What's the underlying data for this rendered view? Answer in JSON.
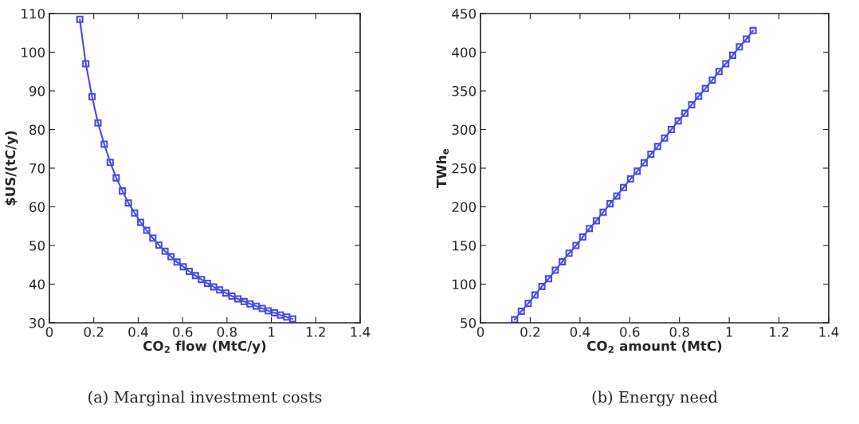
{
  "chart_data": [
    {
      "type": "line",
      "xlabel": "CO$_{2}$ flow (MtC/y)",
      "ylabel": "$US/(tC/y)",
      "xlim": [
        0,
        1.4
      ],
      "xticks": [
        0,
        0.2,
        0.4,
        0.6,
        0.8,
        1,
        1.2,
        1.4
      ],
      "ylim": [
        30,
        110
      ],
      "yticks": [
        30,
        40,
        50,
        60,
        70,
        80,
        90,
        100,
        110
      ],
      "grid": false,
      "marker": "square",
      "line_style": "solid",
      "annotations": [
        "(a) Marginal investment costs"
      ],
      "x": [
        0.137,
        0.164,
        0.192,
        0.219,
        0.247,
        0.274,
        0.301,
        0.329,
        0.356,
        0.384,
        0.411,
        0.438,
        0.466,
        0.493,
        0.521,
        0.548,
        0.575,
        0.603,
        0.63,
        0.658,
        0.685,
        0.712,
        0.74,
        0.767,
        0.795,
        0.822,
        0.849,
        0.877,
        0.904,
        0.932,
        0.959,
        0.986,
        1.014,
        1.041,
        1.069,
        1.096
      ],
      "series": [
        {
          "color": "#4a4ae6",
          "values": [
            108.5,
            97,
            88.5,
            81.7,
            76.2,
            71.5,
            67.5,
            64.1,
            61,
            58.4,
            56,
            53.9,
            51.9,
            50.1,
            48.5,
            47.1,
            45.7,
            44.5,
            43.3,
            42.2,
            41.2,
            40.2,
            39.3,
            38.5,
            37.7,
            36.9,
            36.2,
            35.5,
            34.9,
            34.3,
            33.7,
            33.1,
            32.6,
            32.0,
            31.5,
            31.0
          ]
        }
      ]
    },
    {
      "type": "line",
      "xlabel": "CO$_{2}$ amount (MtC)",
      "ylabel": "TWh$_{e}$",
      "xlim": [
        0,
        1.4
      ],
      "xticks": [
        0,
        0.2,
        0.4,
        0.6,
        0.8,
        1,
        1.2,
        1.4
      ],
      "ylim": [
        50,
        450
      ],
      "yticks": [
        50,
        100,
        150,
        200,
        250,
        300,
        350,
        400,
        450
      ],
      "grid": false,
      "marker": "square",
      "line_style": "solid",
      "annotations": [
        "(b) Energy need"
      ],
      "x": [
        0.137,
        0.164,
        0.192,
        0.219,
        0.247,
        0.274,
        0.301,
        0.329,
        0.356,
        0.384,
        0.411,
        0.438,
        0.466,
        0.493,
        0.521,
        0.548,
        0.575,
        0.603,
        0.63,
        0.658,
        0.685,
        0.712,
        0.74,
        0.767,
        0.795,
        0.822,
        0.849,
        0.877,
        0.904,
        0.932,
        0.959,
        0.986,
        1.014,
        1.041,
        1.069,
        1.096
      ],
      "series": [
        {
          "color": "#4a4ae6",
          "values": [
            54,
            65,
            75,
            86,
            97,
            107,
            118,
            129,
            140,
            150,
            161,
            172,
            182,
            193,
            204,
            214,
            225,
            236,
            246,
            257,
            268,
            278,
            289,
            300,
            311,
            321,
            332,
            343,
            353,
            364,
            375,
            385,
            396,
            407,
            417,
            428
          ]
        }
      ]
    }
  ]
}
